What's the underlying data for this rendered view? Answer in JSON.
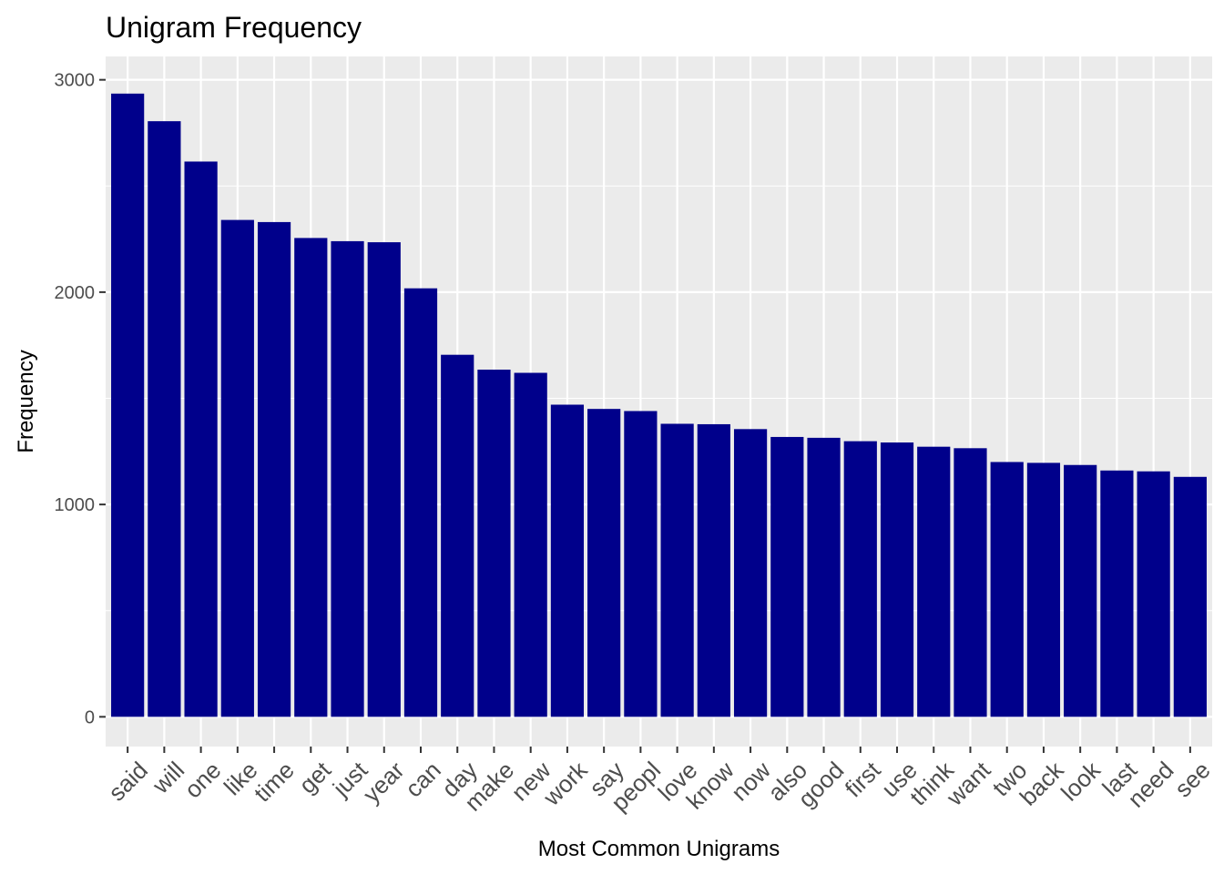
{
  "chart_data": {
    "type": "bar",
    "title": "Unigram Frequency",
    "xlabel": "Most Common Unigrams",
    "ylabel": "Frequency",
    "categories": [
      "said",
      "will",
      "one",
      "like",
      "time",
      "get",
      "just",
      "year",
      "can",
      "day",
      "make",
      "new",
      "work",
      "say",
      "peopl",
      "love",
      "know",
      "now",
      "also",
      "good",
      "first",
      "use",
      "think",
      "want",
      "two",
      "back",
      "look",
      "last",
      "need",
      "see"
    ],
    "values": [
      2935,
      2805,
      2615,
      2340,
      2330,
      2255,
      2240,
      2235,
      2018,
      1705,
      1635,
      1620,
      1470,
      1450,
      1440,
      1380,
      1378,
      1355,
      1318,
      1314,
      1298,
      1292,
      1272,
      1265,
      1200,
      1196,
      1186,
      1160,
      1156,
      1130
    ],
    "yticks": [
      0,
      1000,
      2000,
      3000
    ],
    "ylim": [
      -140,
      3110
    ],
    "bar_color": "#00008B",
    "panel_color": "#EBEBEB",
    "grid": true,
    "legend": "none"
  }
}
